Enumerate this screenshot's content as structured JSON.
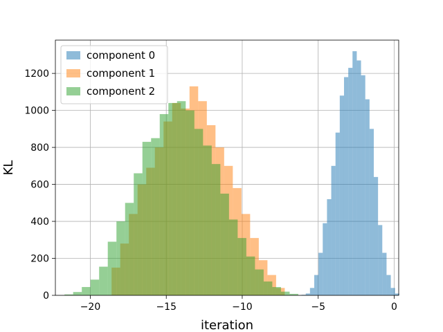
{
  "chart_data": {
    "type": "histogram",
    "xlabel": "iteration",
    "ylabel": "KL",
    "xlim": [
      -22.3,
      0.3
    ],
    "ylim": [
      0,
      1380
    ],
    "xticks": [
      -20,
      -15,
      -10,
      -5,
      0
    ],
    "xtick_labels": [
      "−20",
      "−15",
      "−10",
      "−5",
      "0"
    ],
    "yticks": [
      0,
      200,
      400,
      600,
      800,
      1000,
      1200
    ],
    "ytick_labels": [
      "0",
      "200",
      "400",
      "600",
      "800",
      "1000",
      "1200"
    ],
    "grid": true,
    "legend_position": "upper left",
    "series": [
      {
        "name": "component 0",
        "color": "#1f77b4",
        "bin_start": -6.1,
        "bin_width": 0.28,
        "counts": [
          3,
          10,
          40,
          110,
          230,
          390,
          520,
          700,
          880,
          1080,
          1180,
          1230,
          1320,
          1270,
          1190,
          1060,
          900,
          640,
          380,
          230,
          110,
          40,
          10
        ]
      },
      {
        "name": "component 1",
        "color": "#ff7f0e",
        "bin_start": -18.6,
        "bin_width": 0.57,
        "counts": [
          150,
          280,
          440,
          600,
          690,
          800,
          940,
          1040,
          1010,
          1130,
          1050,
          920,
          800,
          700,
          580,
          440,
          310,
          190,
          110,
          40
        ]
      },
      {
        "name": "component 2",
        "color": "#2ca02c",
        "bin_start": -21.7,
        "bin_width": 0.57,
        "counts": [
          5,
          18,
          45,
          85,
          155,
          290,
          400,
          500,
          660,
          830,
          850,
          980,
          1040,
          1050,
          1000,
          900,
          810,
          710,
          550,
          410,
          310,
          210,
          140,
          75,
          45,
          20,
          8
        ]
      }
    ]
  }
}
